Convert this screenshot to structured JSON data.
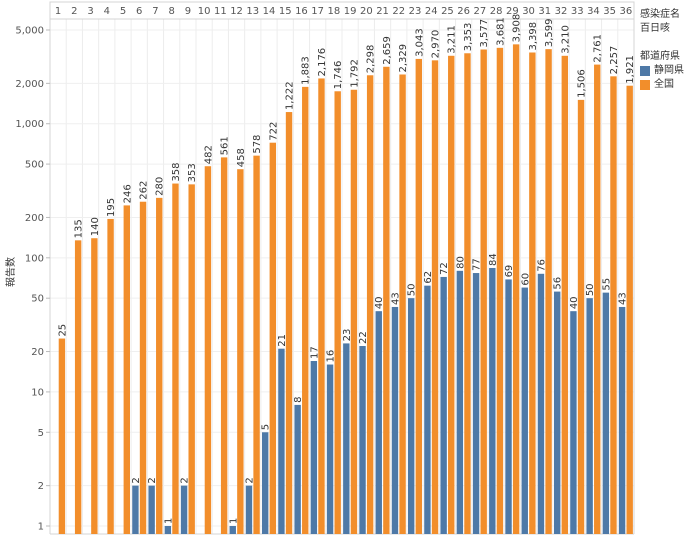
{
  "legend": {
    "filter_title": "感染症名",
    "filter_value": "百日咳",
    "series_title": "都道府県"
  },
  "colors": {
    "shizuoka": "#4e79a7",
    "national": "#f28e2b"
  },
  "chart_data": {
    "type": "bar",
    "title": "",
    "xlabel": "",
    "ylabel": "報告数",
    "yscale": "log",
    "ylim": [
      1,
      5000
    ],
    "yticks": [
      {
        "v": 1,
        "label": "1"
      },
      {
        "v": 2,
        "label": "2"
      },
      {
        "v": 5,
        "label": "5"
      },
      {
        "v": 10,
        "label": "10"
      },
      {
        "v": 20,
        "label": "20"
      },
      {
        "v": 50,
        "label": "50"
      },
      {
        "v": 100,
        "label": "100"
      },
      {
        "v": 200,
        "label": "200"
      },
      {
        "v": 500,
        "label": "500"
      },
      {
        "v": 1000,
        "label": "1,000"
      },
      {
        "v": 2000,
        "label": "2,000"
      },
      {
        "v": 5000,
        "label": "5,000"
      }
    ],
    "categories": [
      "1",
      "2",
      "3",
      "4",
      "5",
      "6",
      "7",
      "8",
      "9",
      "10",
      "11",
      "12",
      "13",
      "14",
      "15",
      "16",
      "17",
      "18",
      "19",
      "20",
      "21",
      "22",
      "23",
      "24",
      "25",
      "26",
      "27",
      "28",
      "29",
      "30",
      "31",
      "32",
      "33",
      "34",
      "35",
      "36"
    ],
    "legend_position": "right",
    "series": [
      {
        "name": "静岡県",
        "values": [
          null,
          null,
          null,
          null,
          null,
          2,
          2,
          1,
          2,
          null,
          null,
          1,
          2,
          5,
          21,
          8,
          17,
          16,
          23,
          22,
          40,
          43,
          50,
          62,
          72,
          80,
          77,
          84,
          69,
          60,
          76,
          56,
          40,
          50,
          55,
          43
        ],
        "labels": [
          null,
          null,
          null,
          null,
          null,
          "2",
          "2",
          "1",
          "2",
          null,
          null,
          "1",
          "2",
          "5",
          "21",
          "8",
          "17",
          "16",
          "23",
          "22",
          "40",
          "43",
          "50",
          "62",
          "72",
          "80",
          "77",
          "84",
          "69",
          "60",
          "76",
          "56",
          "40",
          "50",
          "55",
          "43"
        ]
      },
      {
        "name": "全国",
        "values": [
          25,
          135,
          140,
          195,
          246,
          262,
          280,
          358,
          353,
          482,
          561,
          458,
          578,
          722,
          1222,
          1883,
          2176,
          1746,
          1792,
          2298,
          2659,
          2329,
          3043,
          2970,
          3211,
          3353,
          3577,
          3681,
          3908,
          3398,
          3599,
          3210,
          1506,
          2761,
          2257,
          1921
        ],
        "labels": [
          "25",
          "135",
          "140",
          "195",
          "246",
          "262",
          "280",
          "358",
          "353",
          "482",
          "561",
          "458",
          "578",
          "722",
          "1,222",
          "1,883",
          "2,176",
          "1,746",
          "1,792",
          "2,298",
          "2,659",
          "2,329",
          "3,043",
          "2,970",
          "3,211",
          "3,353",
          "3,577",
          "3,681",
          "3,908",
          "3,398",
          "3,599",
          "3,210",
          "1,506",
          "2,761",
          "2,257",
          "1,921"
        ]
      }
    ]
  }
}
